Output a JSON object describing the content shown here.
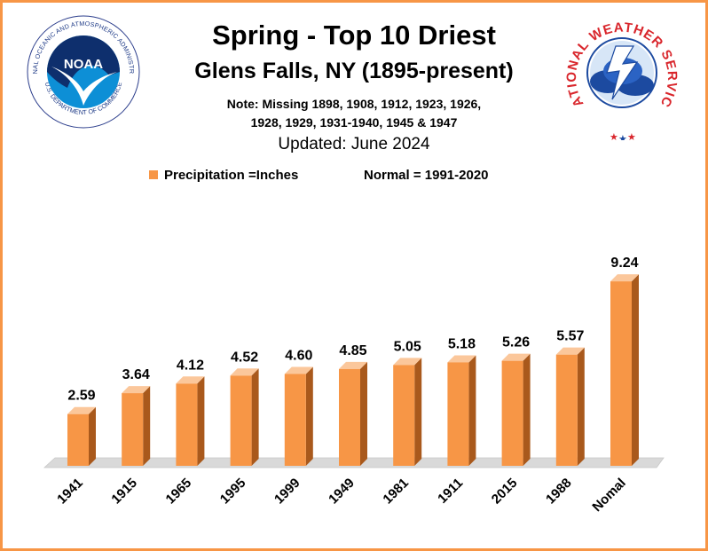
{
  "header": {
    "title": "Spring - Top 10 Driest",
    "subtitle": "Glens Falls, NY (1895-present)",
    "note_line1": "Note: Missing 1898, 1908, 1912, 1923, 1926,",
    "note_line2": "1928, 1929, 1931-1940, 1945 & 1947",
    "updated": "Updated: June 2024"
  },
  "legend": {
    "series_label": "Precipitation =Inches",
    "normal_label": "Normal = 1991-2020"
  },
  "logos": {
    "noaa_text": "NOAA",
    "noaa_ring_top": "NATIONAL OCEANIC AND ATMOSPHERIC ADMINISTRATION",
    "noaa_ring_bottom": "U.S. DEPARTMENT OF COMMERCE",
    "nws_ring": "NATIONAL WEATHER SERVICE"
  },
  "colors": {
    "bar_front": "#f79646",
    "bar_side": "#a9591c",
    "bar_top": "#fbc79b",
    "border": "#f79646",
    "floor": "#d9d9d9"
  },
  "chart_data": {
    "type": "bar",
    "title": "Spring - Top 10 Driest",
    "categories": [
      "1941",
      "1915",
      "1965",
      "1995",
      "1999",
      "1949",
      "1981",
      "1911",
      "2015",
      "1988",
      "Nomal"
    ],
    "series": [
      {
        "name": "Precipitation =Inches",
        "values": [
          2.59,
          3.64,
          4.12,
          4.52,
          4.6,
          4.85,
          5.05,
          5.18,
          5.26,
          5.57,
          9.24
        ]
      }
    ],
    "value_labels": [
      "2.59",
      "3.64",
      "4.12",
      "4.52",
      "4.60",
      "4.85",
      "5.05",
      "5.18",
      "5.26",
      "5.57",
      "9.24"
    ],
    "xlabel": "",
    "ylabel": "",
    "ylim": [
      0,
      10
    ],
    "grid": false,
    "legend_position": "top"
  }
}
